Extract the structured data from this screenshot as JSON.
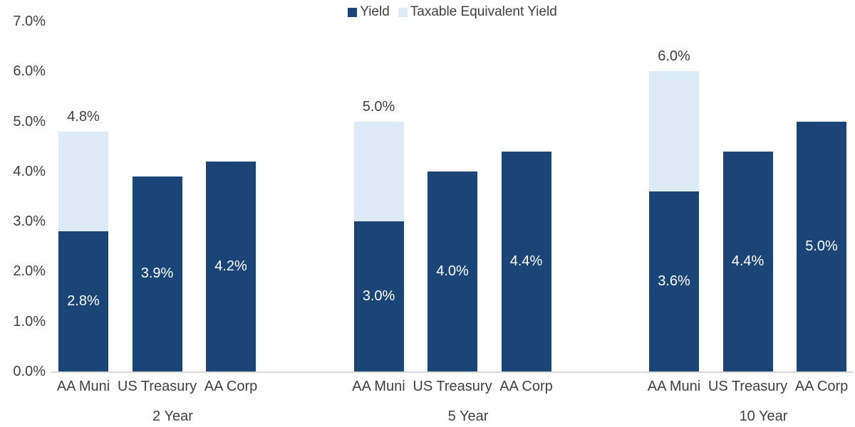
{
  "chart_data": {
    "type": "bar",
    "subtype": "grouped-with-stacked-overlay",
    "title": "",
    "legend": {
      "position": "top",
      "entries": [
        {
          "label": "Yield",
          "color": "#1B4577"
        },
        {
          "label": "Taxable Equivalent Yield",
          "color": "#DDEBF7"
        }
      ]
    },
    "y_axis": {
      "min": 0,
      "max": 7,
      "tick_step": 1,
      "tick_labels": [
        "0.0%",
        "1.0%",
        "2.0%",
        "3.0%",
        "4.0%",
        "5.0%",
        "6.0%",
        "7.0%"
      ],
      "format": "percent",
      "grid": false
    },
    "categories_level1": [
      "AA Muni",
      "US Treasury",
      "AA Corp"
    ],
    "categories_level2": [
      "2 Year",
      "5 Year",
      "10 Year"
    ],
    "groups": [
      {
        "label": "2 Year",
        "bars": [
          {
            "category": "AA Muni",
            "yield": 2.8,
            "tey_total": 4.8,
            "inside_label": "2.8%",
            "above_label": "4.8%"
          },
          {
            "category": "US Treasury",
            "yield": 3.9,
            "tey_total": null,
            "inside_label": "3.9%",
            "above_label": null
          },
          {
            "category": "AA Corp",
            "yield": 4.2,
            "tey_total": null,
            "inside_label": "4.2%",
            "above_label": null
          }
        ]
      },
      {
        "label": "5 Year",
        "bars": [
          {
            "category": "AA Muni",
            "yield": 3.0,
            "tey_total": 5.0,
            "inside_label": "3.0%",
            "above_label": "5.0%"
          },
          {
            "category": "US Treasury",
            "yield": 4.0,
            "tey_total": null,
            "inside_label": "4.0%",
            "above_label": null
          },
          {
            "category": "AA Corp",
            "yield": 4.4,
            "tey_total": null,
            "inside_label": "4.4%",
            "above_label": null
          }
        ]
      },
      {
        "label": "10 Year",
        "bars": [
          {
            "category": "AA Muni",
            "yield": 3.6,
            "tey_total": 6.0,
            "inside_label": "3.6%",
            "above_label": "6.0%"
          },
          {
            "category": "US Treasury",
            "yield": 4.4,
            "tey_total": null,
            "inside_label": "4.4%",
            "above_label": null
          },
          {
            "category": "AA Corp",
            "yield": 5.0,
            "tey_total": null,
            "inside_label": "5.0%",
            "above_label": null
          }
        ]
      }
    ],
    "colors": {
      "yield_bar": "#1B4577",
      "taxable_equivalent_bar": "#DDEBF7",
      "axis_line": "#D9D9D9",
      "text": "#404040",
      "inside_label_text": "#FFFFFF",
      "background": "#FFFFFF"
    }
  }
}
